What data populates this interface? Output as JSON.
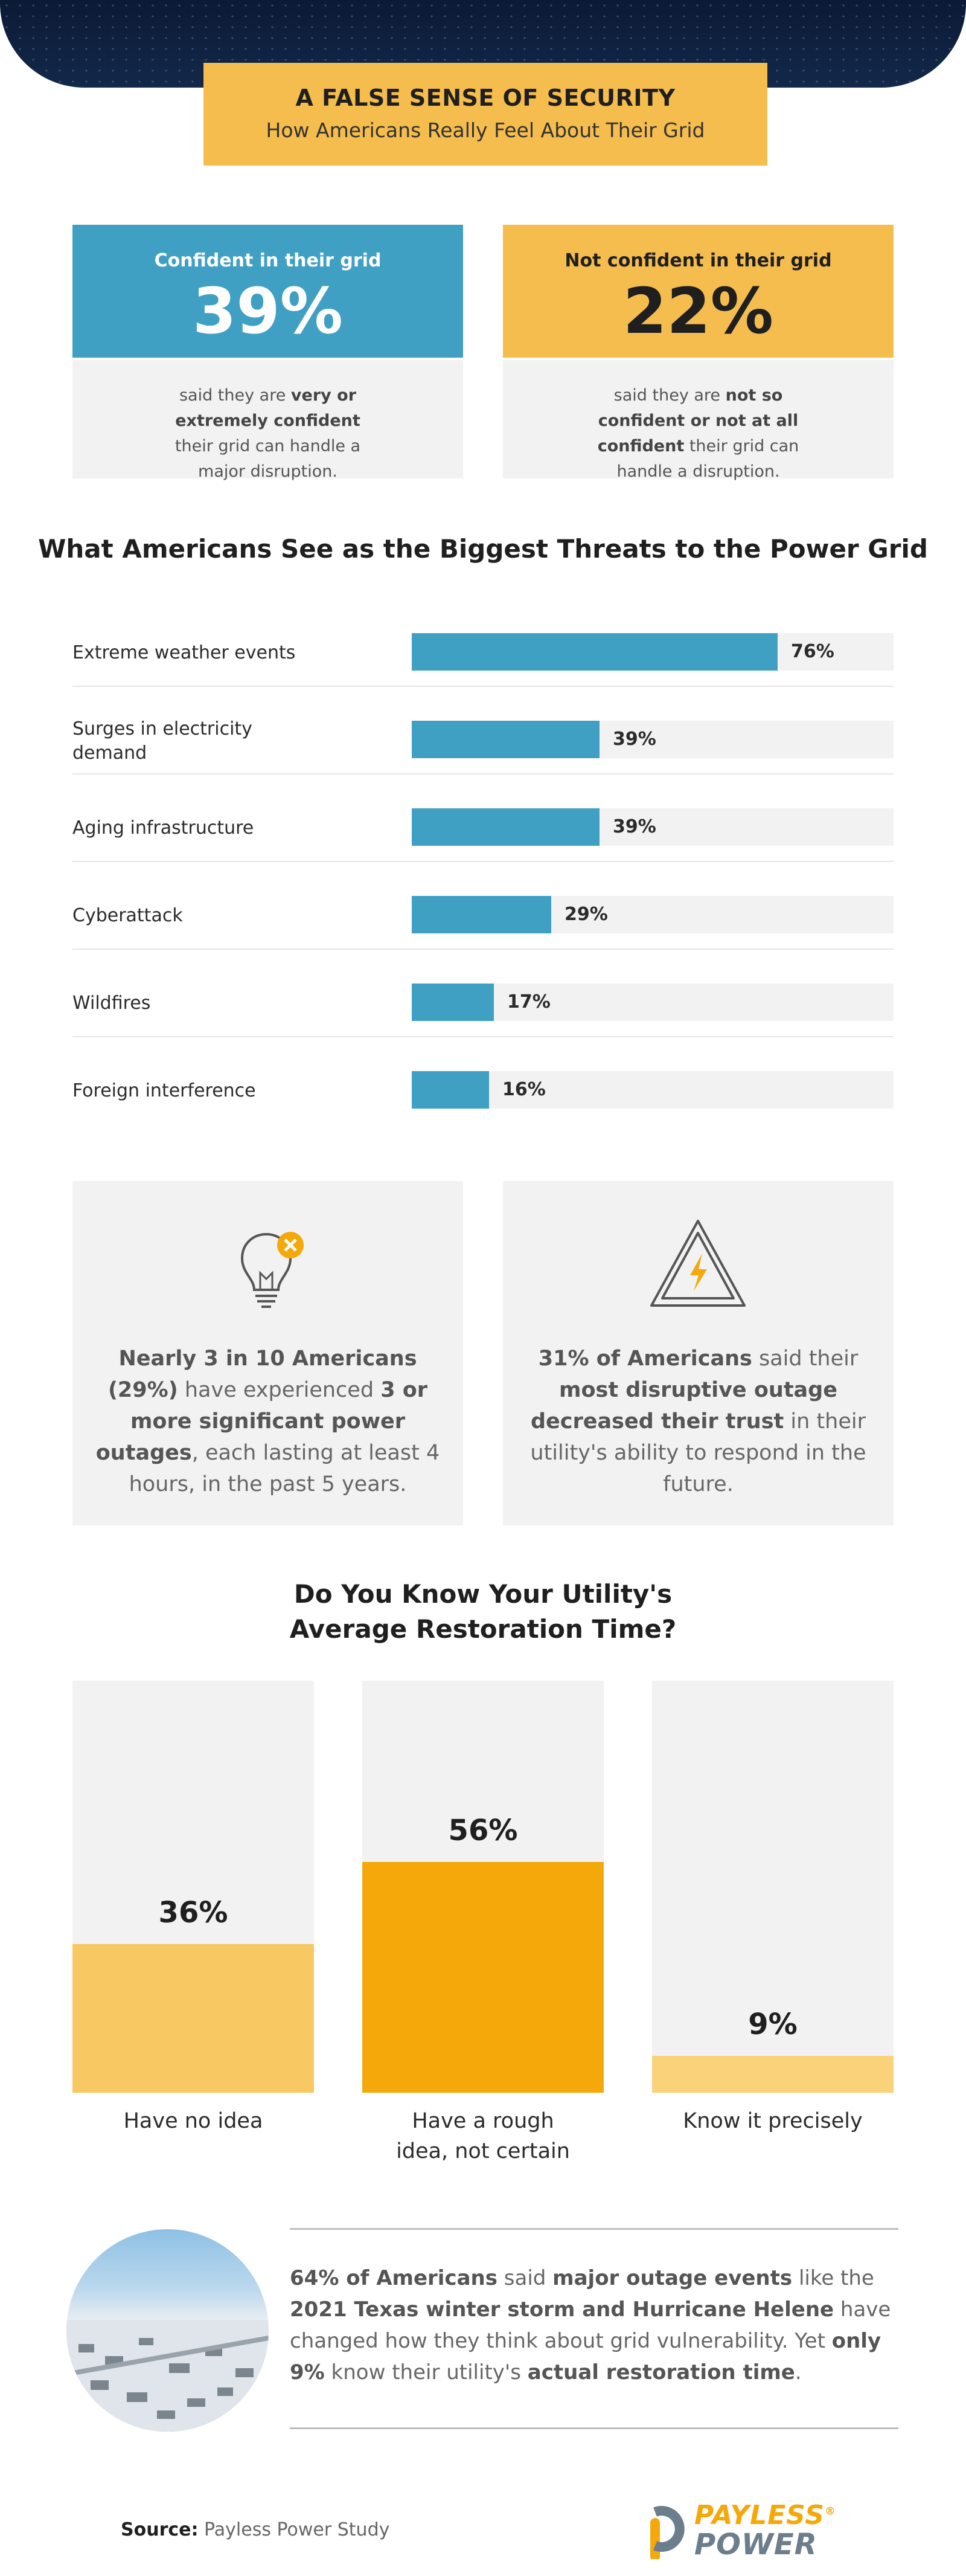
{
  "header": {
    "title": "A FALSE SENSE OF SECURITY",
    "subtitle": "How Americans Really Feel About Their Grid"
  },
  "confidence": {
    "confident": {
      "label": "Confident in their grid",
      "percent": "39%",
      "text_a": "said they are ",
      "text_b": "very or extremely confident",
      "text_c": " their grid can handle a major disruption."
    },
    "not_confident": {
      "label": "Not confident in their grid",
      "percent": "22%",
      "text_a": "said they are ",
      "text_b": "not so confident or not at all confident",
      "text_c": " their grid can handle a disruption."
    }
  },
  "stats": {
    "outages": {
      "icon": "lightbulb-x-icon",
      "b1": "Nearly 3 in 10 Americans (29%)",
      "t1": " have experienced ",
      "b2": "3 or more significant power outages",
      "t2": ", each lasting at least 4 hours, in the past 5 years."
    },
    "trust": {
      "icon": "lightning-warning-icon",
      "b1": "31% of Americans",
      "t1": " said their ",
      "b2": "most disruptive outage decreased their trust",
      "t2": " in their utility's ability to respond in the future."
    }
  },
  "summary": {
    "b1": "64% of Americans",
    "t1": " said ",
    "b2": "major outage events",
    "t2": " like the ",
    "b3": "2021 Texas winter storm and Hurricane Helene",
    "t3": " have changed how they think about grid vulnerability. Yet ",
    "b4": "only 9%",
    "t4": " know their utility's ",
    "b5": "actual restoration time",
    "t5": "."
  },
  "source": {
    "label": "Source:",
    "text": "Payless Power Study"
  },
  "logo": {
    "line1": "PAYLESS",
    "line2": "POWER",
    "mark": "®"
  },
  "colors": {
    "blue": "#3fa0c4",
    "gold": "#f5bd4d",
    "orange": "#f4a80a",
    "light_gold": "#f8c862",
    "pale_gold": "#fad27a",
    "panel": "#f2f2f2"
  },
  "chart_data": [
    {
      "type": "bar",
      "orientation": "horizontal",
      "title": "What Americans See as the Biggest Threats to the Power Grid",
      "categories": [
        "Extreme weather events",
        "Surges in electricity demand",
        "Aging infrastructure",
        "Cyberattack",
        "Wildfires",
        "Foreign interference"
      ],
      "values": [
        76,
        39,
        39,
        29,
        17,
        16
      ],
      "value_labels": [
        "76%",
        "39%",
        "39%",
        "29%",
        "17%",
        "16%"
      ],
      "xlim": [
        0,
        100
      ],
      "grid": false
    },
    {
      "type": "bar",
      "orientation": "vertical",
      "title": "Do You Know Your Utility's Average Restoration Time?",
      "categories": [
        "Have no idea",
        "Have a rough idea, not certain",
        "Know it precisely"
      ],
      "values": [
        36,
        56,
        9
      ],
      "value_labels": [
        "36%",
        "56%",
        "9%"
      ],
      "ylim": [
        0,
        100
      ],
      "colors": [
        "#f8c862",
        "#f4a80a",
        "#fad27a"
      ],
      "grid": false
    }
  ]
}
